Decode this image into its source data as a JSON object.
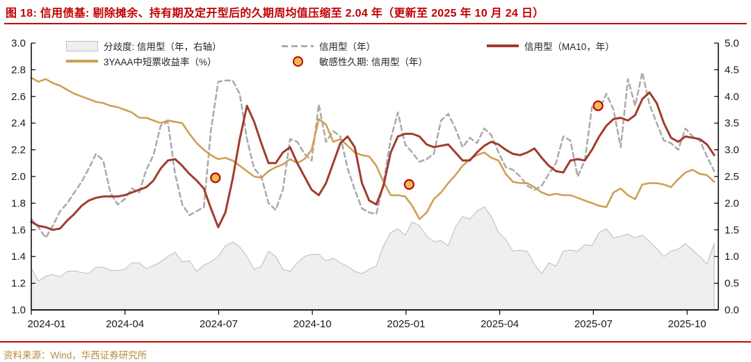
{
  "title": {
    "text": "图 18:  信用债基:  剔除摊余、持有期及定开型后的久期周均值压缩至 2.04 年（更新至 2025 年 10 月 24 日）"
  },
  "footer": {
    "text": "资料来源：Wind，华西证券研究所"
  },
  "colors": {
    "title_red": "#C00000",
    "gold_line": "#CEA054",
    "red_line": "#A13B2E",
    "dashed_gray": "#ABABAB",
    "area_fill": "#EFEFEF",
    "area_stroke": "#C4C4C4",
    "dot_fill": "#EABD4F",
    "dot_ring": "#C00000",
    "footer_gold": "#B08C3E"
  },
  "legend": {
    "items": [
      {
        "label": "分歧度: 信用型（年，右轴）",
        "swatch": "area"
      },
      {
        "label": "信用型（年）",
        "swatch": "dashed"
      },
      {
        "label": "信用型（MA10，年）",
        "swatch": "red-line"
      },
      {
        "label": "3YAAA中短票收益率（%）",
        "swatch": "gold-line"
      },
      {
        "label": "敏感性久期: 信用型（年）",
        "swatch": "dot"
      }
    ]
  },
  "chart_data": {
    "type": "composite",
    "title": "信用债基久期周均值",
    "x": {
      "tick_labels": [
        "2024-01",
        "2024-04",
        "2024-07",
        "2024-10",
        "2025-01",
        "2025-04",
        "2025-07",
        "2025-10"
      ],
      "tick_month_offsets": [
        0,
        3,
        6,
        9,
        12,
        15,
        18,
        21
      ],
      "months_total": 22,
      "frequency": "weekly",
      "last_point": "2025-10-24"
    },
    "y_left": {
      "min": 1.0,
      "max": 3.0,
      "tick_labels": [
        "3.0",
        "2.8",
        "2.6",
        "2.4",
        "2.2",
        "2.0",
        "1.8",
        "1.6",
        "1.4",
        "1.2",
        "1.0"
      ]
    },
    "y_right": {
      "min": 0.0,
      "max": 5.0,
      "tick_labels": [
        "5.0",
        "4.5",
        "4.0",
        "3.5",
        "3.0",
        "2.5",
        "2.0",
        "1.5",
        "1.0",
        "0.5",
        "0.0"
      ]
    },
    "series": [
      {
        "id": "divergence-area",
        "name": "分歧度: 信用型（年，右轴）",
        "type": "area",
        "axis": "right",
        "color": "#EFEFEF",
        "stroke": "#C4C4C4",
        "values": [
          0.78,
          0.54,
          0.63,
          0.66,
          0.62,
          0.72,
          0.73,
          0.7,
          0.68,
          0.8,
          0.8,
          0.74,
          0.74,
          0.76,
          0.88,
          0.88,
          0.77,
          0.83,
          0.9,
          1.0,
          1.08,
          0.9,
          0.92,
          0.72,
          0.84,
          0.9,
          1.0,
          1.2,
          1.27,
          1.18,
          1.0,
          0.76,
          0.82,
          1.1,
          1.0,
          0.76,
          0.72,
          0.88,
          1.0,
          1.04,
          1.04,
          0.92,
          0.97,
          0.88,
          0.82,
          0.72,
          0.68,
          0.76,
          0.82,
          1.2,
          1.45,
          1.52,
          1.4,
          1.65,
          1.58,
          1.38,
          1.28,
          1.3,
          1.2,
          1.55,
          1.75,
          1.7,
          1.85,
          1.93,
          1.75,
          1.45,
          1.32,
          1.1,
          1.12,
          1.1,
          0.85,
          0.68,
          0.88,
          0.82,
          1.1,
          1.12,
          1.1,
          1.22,
          1.2,
          1.45,
          1.52,
          1.35,
          1.38,
          1.42,
          1.35,
          1.4,
          1.28,
          1.15,
          1.0,
          1.1,
          1.14,
          1.24,
          1.12,
          1.0,
          0.86,
          1.25
        ]
      },
      {
        "id": "credit-weekly",
        "name": "信用型（年）",
        "type": "line",
        "style": "dashed",
        "axis": "left",
        "color": "#ABABAB",
        "values": [
          1.68,
          1.62,
          1.54,
          1.63,
          1.74,
          1.8,
          1.88,
          1.96,
          2.06,
          2.17,
          2.12,
          1.88,
          1.79,
          1.83,
          1.91,
          1.88,
          2.05,
          2.16,
          2.38,
          2.41,
          2.02,
          1.79,
          1.71,
          1.74,
          1.77,
          2.35,
          2.71,
          2.72,
          2.72,
          2.62,
          2.28,
          2.06,
          2.0,
          1.8,
          1.75,
          1.9,
          2.28,
          2.26,
          2.17,
          2.12,
          2.54,
          2.26,
          2.34,
          2.3,
          2.06,
          1.9,
          1.76,
          1.73,
          1.72,
          1.95,
          2.28,
          2.48,
          2.24,
          2.18,
          2.11,
          2.13,
          2.17,
          2.42,
          2.47,
          2.36,
          2.22,
          2.29,
          2.25,
          2.36,
          2.31,
          2.18,
          2.07,
          2.05,
          2.0,
          1.93,
          1.9,
          1.93,
          2.02,
          2.1,
          2.3,
          2.27,
          2.0,
          2.12,
          2.52,
          2.5,
          2.62,
          2.5,
          2.22,
          2.73,
          2.53,
          2.78,
          2.54,
          2.4,
          2.27,
          2.25,
          2.2,
          2.36,
          2.3,
          2.27,
          2.15,
          2.04
        ]
      },
      {
        "id": "yield-3yaaa",
        "name": "3YAAA中短票收益率（%）",
        "type": "line",
        "axis": "left",
        "color": "#CEA054",
        "values": [
          2.74,
          2.71,
          2.73,
          2.7,
          2.68,
          2.65,
          2.62,
          2.6,
          2.58,
          2.56,
          2.55,
          2.53,
          2.52,
          2.5,
          2.48,
          2.44,
          2.44,
          2.42,
          2.4,
          2.42,
          2.41,
          2.4,
          2.32,
          2.25,
          2.2,
          2.16,
          2.13,
          2.14,
          2.12,
          2.08,
          2.04,
          2.0,
          1.99,
          2.04,
          2.07,
          2.09,
          2.13,
          2.1,
          2.13,
          2.2,
          2.43,
          2.39,
          2.26,
          2.28,
          2.23,
          2.18,
          2.16,
          2.15,
          2.08,
          1.96,
          1.86,
          1.86,
          1.85,
          1.78,
          1.68,
          1.73,
          1.83,
          1.88,
          1.95,
          2.01,
          2.08,
          2.13,
          2.16,
          2.18,
          2.14,
          2.12,
          2.02,
          1.96,
          1.95,
          1.95,
          1.92,
          1.88,
          1.86,
          1.87,
          1.86,
          1.86,
          1.84,
          1.82,
          1.8,
          1.78,
          1.77,
          1.88,
          1.91,
          1.86,
          1.83,
          1.94,
          1.95,
          1.95,
          1.94,
          1.92,
          1.98,
          2.03,
          2.05,
          2.02,
          2.01,
          1.96
        ]
      },
      {
        "id": "credit-ma10",
        "name": "信用型（MA10，年）",
        "type": "line",
        "axis": "left",
        "color": "#A13B2E",
        "width": 3,
        "values": [
          1.66,
          1.63,
          1.62,
          1.6,
          1.61,
          1.67,
          1.72,
          1.78,
          1.82,
          1.84,
          1.85,
          1.85,
          1.85,
          1.86,
          1.88,
          1.9,
          1.92,
          1.97,
          2.06,
          2.12,
          2.13,
          2.08,
          2.02,
          1.97,
          1.91,
          1.76,
          1.62,
          1.73,
          1.98,
          2.28,
          2.53,
          2.41,
          2.25,
          2.1,
          2.1,
          2.18,
          2.22,
          2.1,
          2.0,
          1.9,
          1.86,
          1.95,
          2.1,
          2.25,
          2.3,
          2.22,
          1.95,
          1.82,
          1.79,
          1.93,
          2.18,
          2.3,
          2.32,
          2.32,
          2.3,
          2.24,
          2.22,
          2.23,
          2.24,
          2.18,
          2.12,
          2.12,
          2.18,
          2.23,
          2.26,
          2.24,
          2.2,
          2.17,
          2.16,
          2.18,
          2.21,
          2.14,
          2.08,
          2.04,
          2.03,
          2.12,
          2.13,
          2.12,
          2.2,
          2.3,
          2.38,
          2.43,
          2.44,
          2.42,
          2.46,
          2.58,
          2.63,
          2.55,
          2.4,
          2.29,
          2.26,
          2.3,
          2.29,
          2.28,
          2.24,
          2.16
        ]
      }
    ],
    "scatter": {
      "id": "sensitive-duration",
      "name": "敏感性久期: 信用型（年）",
      "fill": "#EABD4F",
      "stroke": "#C00000",
      "points": [
        {
          "x_frac": 0.268,
          "value": 1.99
        },
        {
          "x_frac": 0.55,
          "value": 1.94
        },
        {
          "x_frac": 0.825,
          "value": 2.53
        }
      ]
    }
  }
}
